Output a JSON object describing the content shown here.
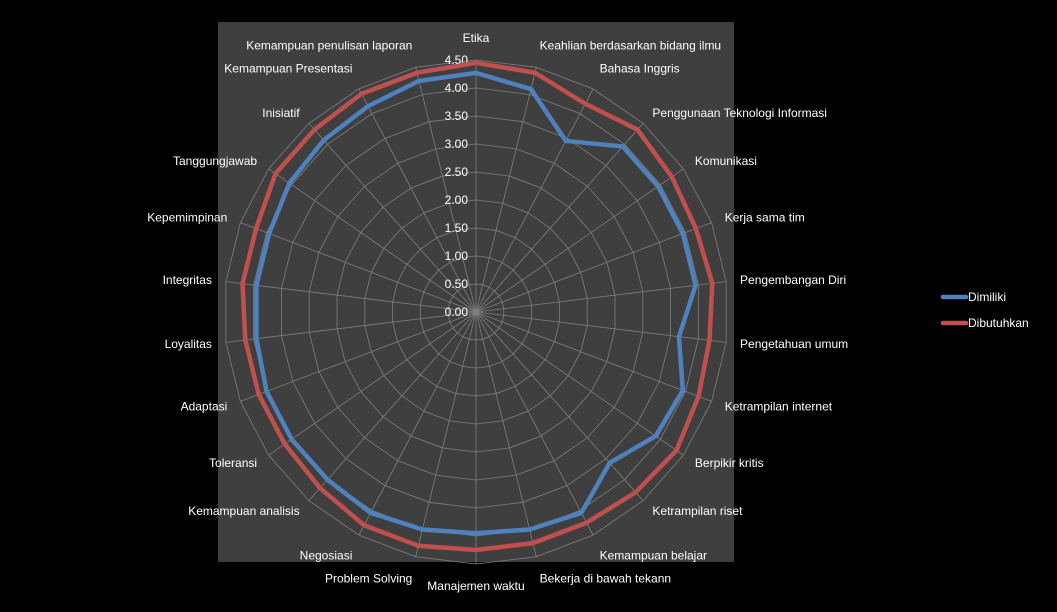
{
  "chart_data": {
    "type": "radar",
    "categories": [
      "Etika",
      "Keahlian berdasarkan bidang ilmu",
      "Bahasa Inggris",
      "Penggunaan Teknologi Informasi",
      "Komunikasi",
      "Kerja sama tim",
      "Pengembangan Diri",
      "Pengetahuan umum",
      "Ketrampilan internet",
      "Berpikir kritis",
      "Ketrampilan riset",
      "Kemampuan belajar",
      "Bekerja di bawah tekann",
      "Manajemen waktu",
      "Problem Solving",
      "Negosiasi",
      "Kemampuan analisis",
      "Toleransi",
      "Adaptasi",
      "Loyalitas",
      "Integritas",
      "Kepemimpinan",
      "Tanggungjawab",
      "Inisiatif",
      "Kemampuan Presentasi",
      "Kemampuan penulisan laporan"
    ],
    "series": [
      {
        "name": "Dimiliki",
        "color": "#4f81bd",
        "values": [
          4.27,
          4.1,
          3.45,
          3.95,
          3.95,
          3.95,
          3.95,
          3.65,
          3.95,
          3.9,
          3.6,
          4.05,
          4.0,
          3.95,
          4.0,
          4.05,
          4.0,
          4.0,
          4.0,
          3.95,
          3.95,
          3.95,
          4.05,
          4.1,
          4.15,
          4.25
        ]
      },
      {
        "name": "Dibutuhkan",
        "color": "#c0504d",
        "values": [
          4.45,
          4.4,
          4.2,
          4.35,
          4.25,
          4.2,
          4.25,
          4.2,
          4.25,
          4.35,
          4.3,
          4.25,
          4.25,
          4.25,
          4.3,
          4.3,
          4.2,
          4.15,
          4.15,
          4.15,
          4.2,
          4.2,
          4.35,
          4.35,
          4.4,
          4.4
        ]
      }
    ],
    "axis": {
      "min": 0,
      "max": 4.5,
      "step": 0.5,
      "tick_labels": [
        "0.00",
        "0.50",
        "1.00",
        "1.50",
        "2.00",
        "2.50",
        "3.00",
        "3.50",
        "4.00",
        "4.50"
      ]
    },
    "grid": true,
    "legend": "right"
  }
}
